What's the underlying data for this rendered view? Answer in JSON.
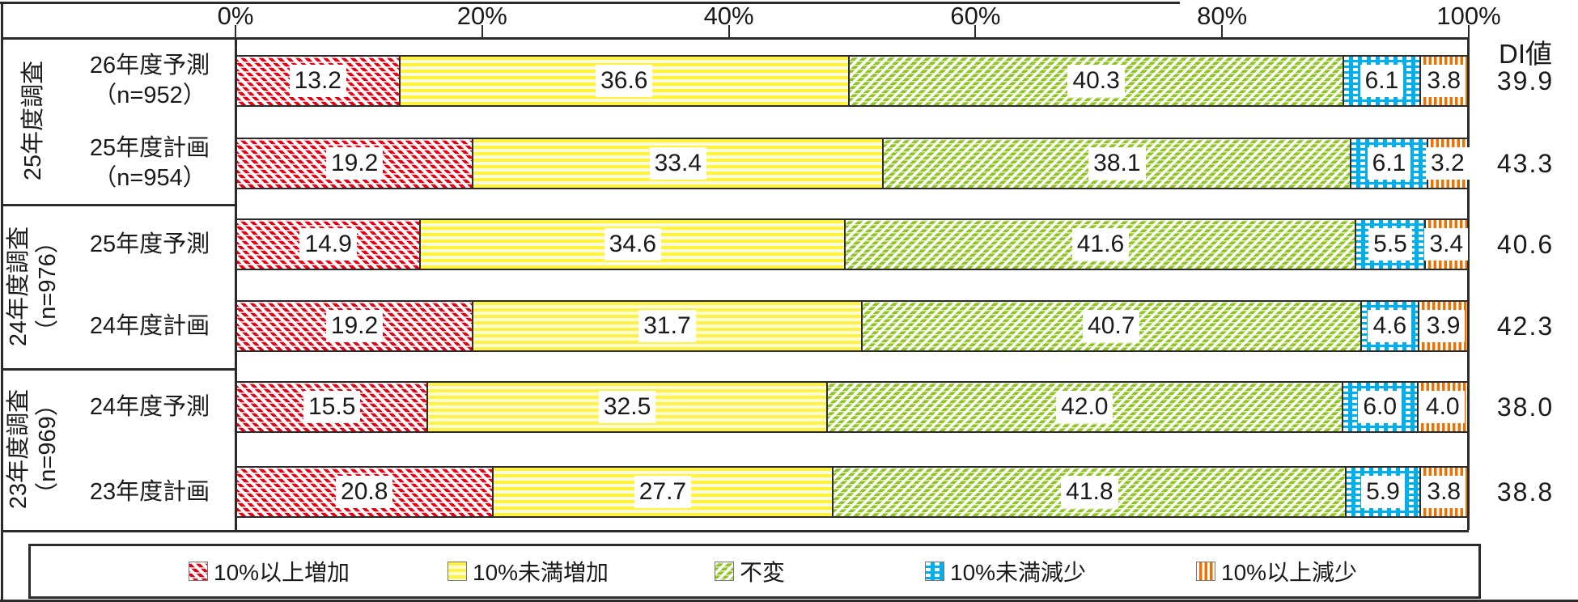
{
  "chart_data": {
    "type": "bar",
    "variant": "horizontal-stacked-percent",
    "x_axis": {
      "tick_labels": [
        "0%",
        "20%",
        "40%",
        "60%",
        "80%",
        "100%"
      ],
      "range": [
        0,
        100
      ],
      "position": "top"
    },
    "di_column_header": "DI値",
    "series_labels": [
      "10%以上増加",
      "10%未満増加",
      "不変",
      "10%未満減少",
      "10%以上減少"
    ],
    "legend_position": "bottom",
    "groups": [
      {
        "label_lines": [
          "25年度調査"
        ],
        "rows": [
          {
            "label_lines": [
              "26年度予測",
              "（n=952）"
            ],
            "values": [
              13.2,
              36.6,
              40.3,
              6.1,
              3.8
            ],
            "di": 39.9
          },
          {
            "label_lines": [
              "25年度計画",
              "（n=954）"
            ],
            "values": [
              19.2,
              33.4,
              38.1,
              6.1,
              3.2
            ],
            "di": 43.3
          }
        ]
      },
      {
        "label_lines": [
          "24年度調査",
          "（n=976）"
        ],
        "rows": [
          {
            "label_lines": [
              "25年度予測"
            ],
            "values": [
              14.9,
              34.6,
              41.6,
              5.5,
              3.4
            ],
            "di": 40.6
          },
          {
            "label_lines": [
              "24年度計画"
            ],
            "values": [
              19.2,
              31.7,
              40.7,
              4.6,
              3.9
            ],
            "di": 42.3
          }
        ]
      },
      {
        "label_lines": [
          "23年度調査",
          "（n=969）"
        ],
        "rows": [
          {
            "label_lines": [
              "24年度予測"
            ],
            "values": [
              15.5,
              32.5,
              42.0,
              6.0,
              4.0
            ],
            "di": 38.0
          },
          {
            "label_lines": [
              "23年度計画"
            ],
            "values": [
              20.8,
              27.7,
              41.8,
              5.9,
              3.8
            ],
            "di": 38.8
          }
        ]
      }
    ]
  },
  "colors": {
    "increase_10_plus": "#E60012",
    "increase_under_10": "#FFF33F",
    "unchanged": "#8FC31F",
    "decrease_under_10": "#00AFEC",
    "decrease_10_plus": "#ED7100",
    "frame_line": "#2B2B2B"
  }
}
